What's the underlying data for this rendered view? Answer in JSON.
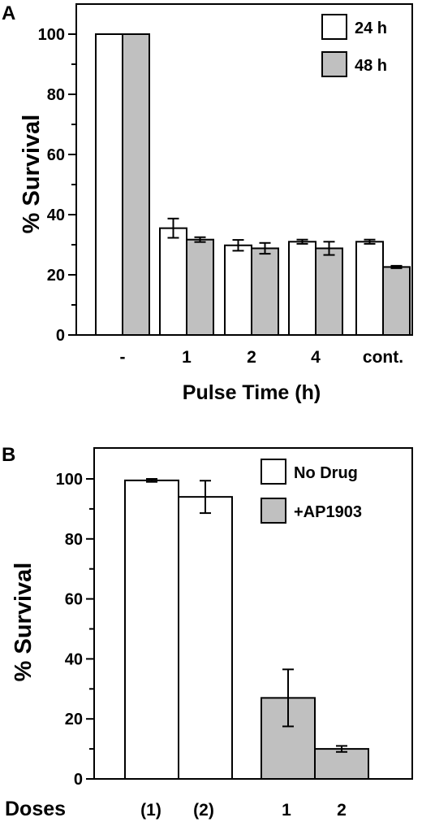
{
  "chart_data": [
    {
      "panel": "A",
      "type": "bar",
      "xlabel": "Pulse Time (h)",
      "ylabel": "% Survival",
      "ylim": [
        0,
        110
      ],
      "yticks": [
        "0",
        "20",
        "40",
        "60",
        "80",
        "100"
      ],
      "categories": [
        "-",
        "1",
        "2",
        "4",
        "cont."
      ],
      "series": [
        {
          "name": "24 h",
          "color": "#ffffff",
          "values": [
            100,
            35.5,
            29.8,
            31,
            31
          ],
          "errors": [
            0,
            3.2,
            1.8,
            0.7,
            0.7
          ]
        },
        {
          "name": "48 h",
          "color": "#c0c0c0",
          "values": [
            100,
            31.7,
            28.8,
            28.8,
            22.6
          ],
          "errors": [
            0,
            0.8,
            1.8,
            2.2,
            0.4
          ]
        }
      ],
      "legend": "top-right",
      "grid": false
    },
    {
      "panel": "B",
      "type": "bar",
      "xlabel": "Doses",
      "ylabel": "% Survival",
      "ylim": [
        0,
        110
      ],
      "yticks": [
        "0",
        "20",
        "40",
        "60",
        "80",
        "100"
      ],
      "categories": [
        "(1)",
        "(2)",
        "1",
        "2"
      ],
      "series": [
        {
          "name": "No Drug",
          "color": "#ffffff",
          "values": [
            99.5,
            94,
            null,
            null
          ],
          "errors": [
            0.5,
            5.4,
            null,
            null
          ]
        },
        {
          "name": "+AP1903",
          "color": "#c0c0c0",
          "values": [
            null,
            null,
            27,
            10
          ],
          "errors": [
            null,
            null,
            9.5,
            1
          ]
        }
      ],
      "legend": "top-right",
      "grid": false
    }
  ]
}
